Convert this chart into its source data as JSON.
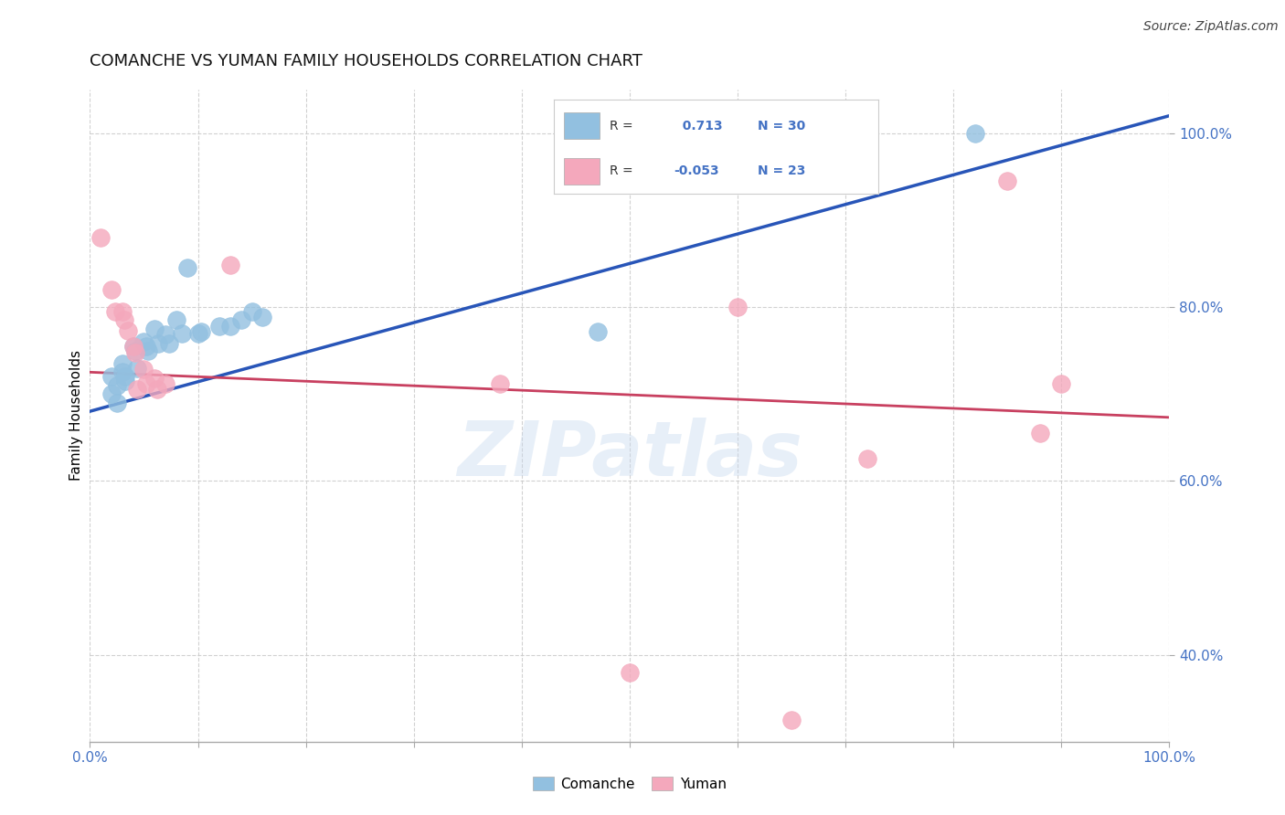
{
  "title": "COMANCHE VS YUMAN FAMILY HOUSEHOLDS CORRELATION CHART",
  "source": "Source: ZipAtlas.com",
  "ylabel": "Family Households",
  "xlim": [
    0.0,
    1.0
  ],
  "ylim": [
    0.3,
    1.05
  ],
  "ytick_positions": [
    0.4,
    0.6,
    0.8,
    1.0
  ],
  "ytick_labels": [
    "40.0%",
    "60.0%",
    "80.0%",
    "100.0%"
  ],
  "xtick_positions": [
    0.0,
    0.1,
    0.2,
    0.3,
    0.4,
    0.5,
    0.6,
    0.7,
    0.8,
    0.9,
    1.0
  ],
  "xtick_labels": [
    "0.0%",
    "",
    "",
    "",
    "",
    "",
    "",
    "",
    "",
    "",
    "100.0%"
  ],
  "comanche_R": 0.713,
  "comanche_N": 30,
  "yuman_R": -0.053,
  "yuman_N": 23,
  "comanche_color": "#92C0E0",
  "yuman_color": "#F4A8BC",
  "comanche_line_color": "#2855B8",
  "yuman_line_color": "#C84060",
  "axis_color": "#4472C4",
  "comanche_x": [
    0.02,
    0.02,
    0.025,
    0.025,
    0.03,
    0.03,
    0.033,
    0.033,
    0.04,
    0.042,
    0.044,
    0.05,
    0.052,
    0.054,
    0.06,
    0.063,
    0.07,
    0.073,
    0.08,
    0.085,
    0.09,
    0.1,
    0.103,
    0.12,
    0.13,
    0.14,
    0.15,
    0.16,
    0.47,
    0.82
  ],
  "comanche_y": [
    0.72,
    0.7,
    0.69,
    0.71,
    0.735,
    0.725,
    0.72,
    0.715,
    0.755,
    0.75,
    0.73,
    0.76,
    0.755,
    0.75,
    0.775,
    0.758,
    0.768,
    0.758,
    0.785,
    0.77,
    0.845,
    0.77,
    0.772,
    0.778,
    0.778,
    0.785,
    0.795,
    0.788,
    0.772,
    1.0
  ],
  "yuman_x": [
    0.01,
    0.02,
    0.023,
    0.03,
    0.032,
    0.035,
    0.04,
    0.042,
    0.044,
    0.05,
    0.052,
    0.06,
    0.062,
    0.07,
    0.13,
    0.38,
    0.5,
    0.6,
    0.65,
    0.72,
    0.85,
    0.88,
    0.9
  ],
  "yuman_y": [
    0.88,
    0.82,
    0.795,
    0.795,
    0.785,
    0.773,
    0.755,
    0.747,
    0.705,
    0.728,
    0.712,
    0.718,
    0.705,
    0.712,
    0.848,
    0.712,
    0.38,
    0.8,
    0.325,
    0.625,
    0.945,
    0.655,
    0.712
  ],
  "comanche_line_x": [
    0.0,
    1.0
  ],
  "comanche_line_y": [
    0.68,
    1.02
  ],
  "yuman_line_x": [
    0.0,
    1.0
  ],
  "yuman_line_y": [
    0.725,
    0.673
  ],
  "watermark": "ZIPatlas",
  "title_fontsize": 13,
  "axis_label_fontsize": 11,
  "tick_fontsize": 11,
  "source_fontsize": 10
}
